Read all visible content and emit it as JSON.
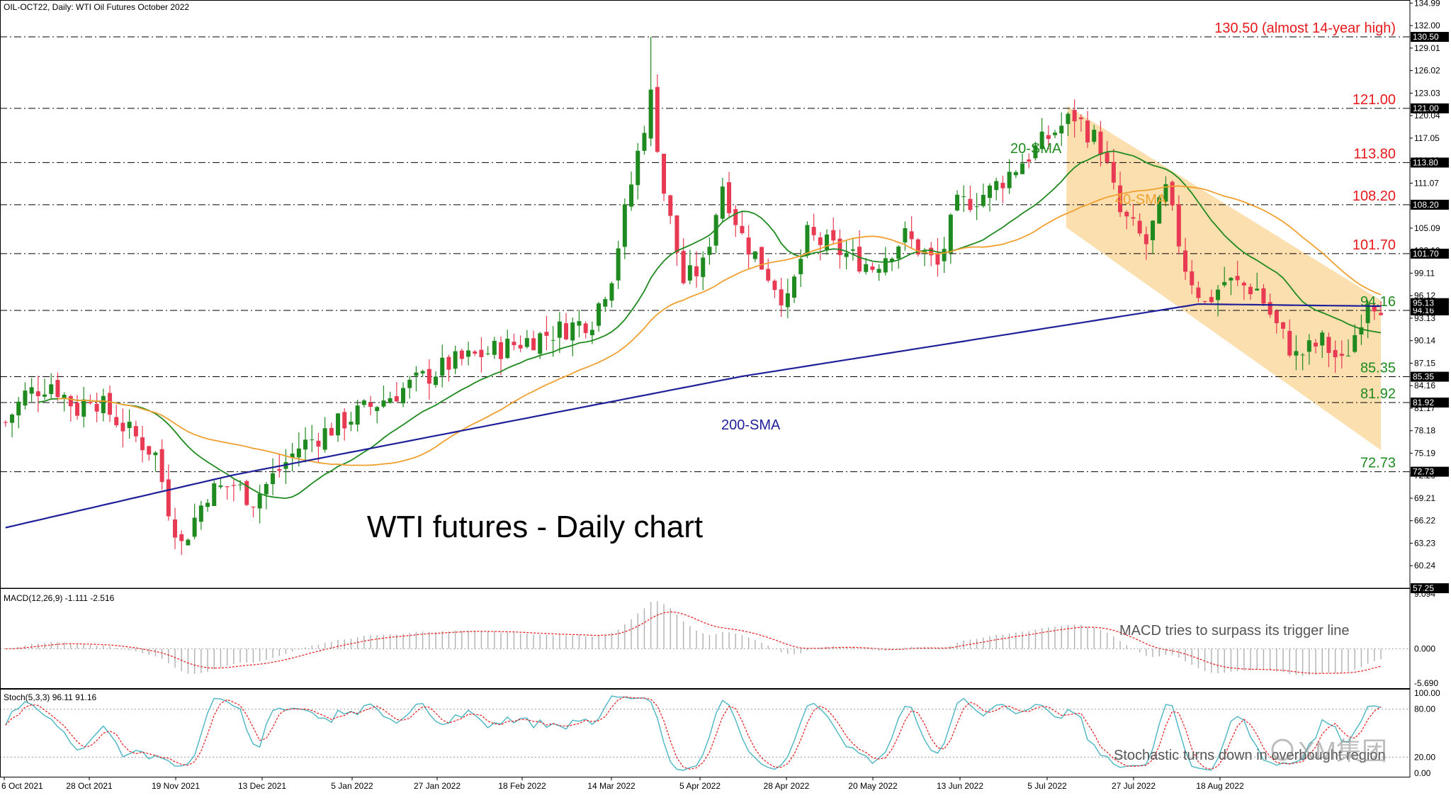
{
  "chart_data": {
    "type": "candlestick",
    "header": "OIL-OCT22, Daily:  WTI Oil Futures October 2022",
    "title": "WTI futures - Daily chart",
    "price_axis": {
      "range": [
        57.25,
        135.4
      ],
      "ticks": [
        "134.99",
        "132.00",
        "129.01",
        "126.02",
        "123.03",
        "120.04",
        "117.05",
        "114.06",
        "111.07",
        "108.08",
        "105.09",
        "102.10",
        "99.11",
        "96.12",
        "93.13",
        "90.14",
        "87.15",
        "84.16",
        "81.17",
        "78.18",
        "75.19",
        "72.20",
        "69.21",
        "66.22",
        "63.23",
        "60.24"
      ]
    },
    "dates": [
      "6 Oct 2021",
      "28 Oct 2021",
      "19 Nov 2021",
      "13 Dec 2021",
      "5 Jan 2022",
      "27 Jan 2022",
      "18 Feb 2022",
      "14 Mar 2022",
      "5 Apr 2022",
      "28 Apr 2022",
      "20 May 2022",
      "13 Jun 2022",
      "5 Jul 2022",
      "27 Jul 2022",
      "18 Aug 2022"
    ],
    "levels": [
      {
        "value": 130.5,
        "label": "130.50 (almost 14-year high)",
        "tag": "130.50",
        "color": "#e8191c"
      },
      {
        "value": 121.0,
        "label": "121.00",
        "tag": "121.00",
        "color": "#e8191c"
      },
      {
        "value": 113.8,
        "label": "113.80",
        "tag": "113.80",
        "color": "#e8191c"
      },
      {
        "value": 108.2,
        "label": "108.20",
        "tag": "108.20",
        "color": "#e8191c"
      },
      {
        "value": 101.7,
        "label": "101.70",
        "tag": "101.70",
        "color": "#e8191c"
      },
      {
        "value": 94.16,
        "label": "94.16",
        "tag": "94.16",
        "color": "#1f8a1f"
      },
      {
        "value": 85.35,
        "label": "85.35",
        "tag": "85.35",
        "color": "#1f8a1f"
      },
      {
        "value": 81.92,
        "label": "81.92",
        "tag": "81.92",
        "color": "#1f8a1f"
      },
      {
        "value": 72.73,
        "label": "72.73",
        "tag": "72.73",
        "color": "#1f8a1f"
      }
    ],
    "current_tag": "95.13",
    "bottom_tag": "57.25",
    "sma_labels": {
      "sma20": "20-SMA",
      "sma40": "40-SMA",
      "sma200": "200-SMA"
    },
    "colors": {
      "bull": "#1f8a1f",
      "bear": "#e83a52",
      "sma20": "#1f8a1f",
      "sma40": "#f0a030",
      "sma200": "#1f1f9a",
      "channel": "#fad9a0",
      "stoch_main": "#4ab5c4",
      "stoch_signal": "#e8191c"
    },
    "ohlc_anchors": [
      {
        "x": 6.8,
        "close": 79
      },
      {
        "x": 10,
        "close": 83
      },
      {
        "x": 14,
        "close": 84.6
      },
      {
        "x": 18,
        "close": 81
      },
      {
        "x": 20,
        "close": 83
      },
      {
        "x": 26,
        "close": 78
      },
      {
        "x": 30,
        "close": 75
      },
      {
        "x": 32,
        "close": 68
      },
      {
        "x": 34,
        "close": 63
      },
      {
        "x": 38,
        "close": 70
      },
      {
        "x": 42,
        "close": 71
      },
      {
        "x": 45,
        "close": 69
      },
      {
        "x": 52,
        "close": 76
      },
      {
        "x": 60,
        "close": 80
      },
      {
        "x": 75,
        "close": 87
      },
      {
        "x": 90,
        "close": 91
      },
      {
        "x": 97,
        "close": 93
      },
      {
        "x": 100,
        "close": 99
      },
      {
        "x": 103,
        "close": 111
      },
      {
        "x": 106,
        "close": 123
      },
      {
        "x": 108,
        "close": 110
      },
      {
        "x": 111,
        "close": 98
      },
      {
        "x": 114,
        "close": 100
      },
      {
        "x": 117,
        "close": 111
      },
      {
        "x": 120,
        "close": 104
      },
      {
        "x": 124,
        "close": 99
      },
      {
        "x": 127,
        "close": 95
      },
      {
        "x": 130,
        "close": 104
      },
      {
        "x": 135,
        "close": 102
      },
      {
        "x": 140,
        "close": 100
      },
      {
        "x": 145,
        "close": 104
      },
      {
        "x": 150,
        "close": 100
      },
      {
        "x": 153,
        "close": 108
      },
      {
        "x": 158,
        "close": 110
      },
      {
        "x": 163,
        "close": 114
      },
      {
        "x": 168,
        "close": 118
      },
      {
        "x": 171,
        "close": 120
      },
      {
        "x": 175,
        "close": 116
      },
      {
        "x": 178,
        "close": 107
      },
      {
        "x": 182,
        "close": 103
      },
      {
        "x": 185,
        "close": 110
      },
      {
        "x": 188,
        "close": 100
      },
      {
        "x": 191,
        "close": 95
      },
      {
        "x": 194,
        "close": 98
      },
      {
        "x": 199,
        "close": 97
      },
      {
        "x": 202,
        "close": 92
      },
      {
        "x": 205,
        "close": 88
      },
      {
        "x": 209,
        "close": 90
      },
      {
        "x": 212,
        "close": 87
      },
      {
        "x": 214,
        "close": 91
      },
      {
        "x": 216,
        "close": 96
      },
      {
        "x": 217.5,
        "close": 95.1
      }
    ],
    "macd": {
      "label": "MACD(12,26,9) -1.111 -2.516",
      "range": [
        -5.69,
        9.094
      ],
      "ticks": [
        "9.094",
        "0.000",
        "-5.690"
      ],
      "annotation": "MACD tries to surpass its trigger line"
    },
    "stoch": {
      "label": "Stoch(5,3,3) 96.11 91.16",
      "range": [
        0,
        100
      ],
      "ticks": [
        "100.00",
        "80.00",
        "20.00",
        "0.00"
      ],
      "annotation": "Stochastic turns down in overbought region"
    },
    "watermark": "XM集团"
  }
}
